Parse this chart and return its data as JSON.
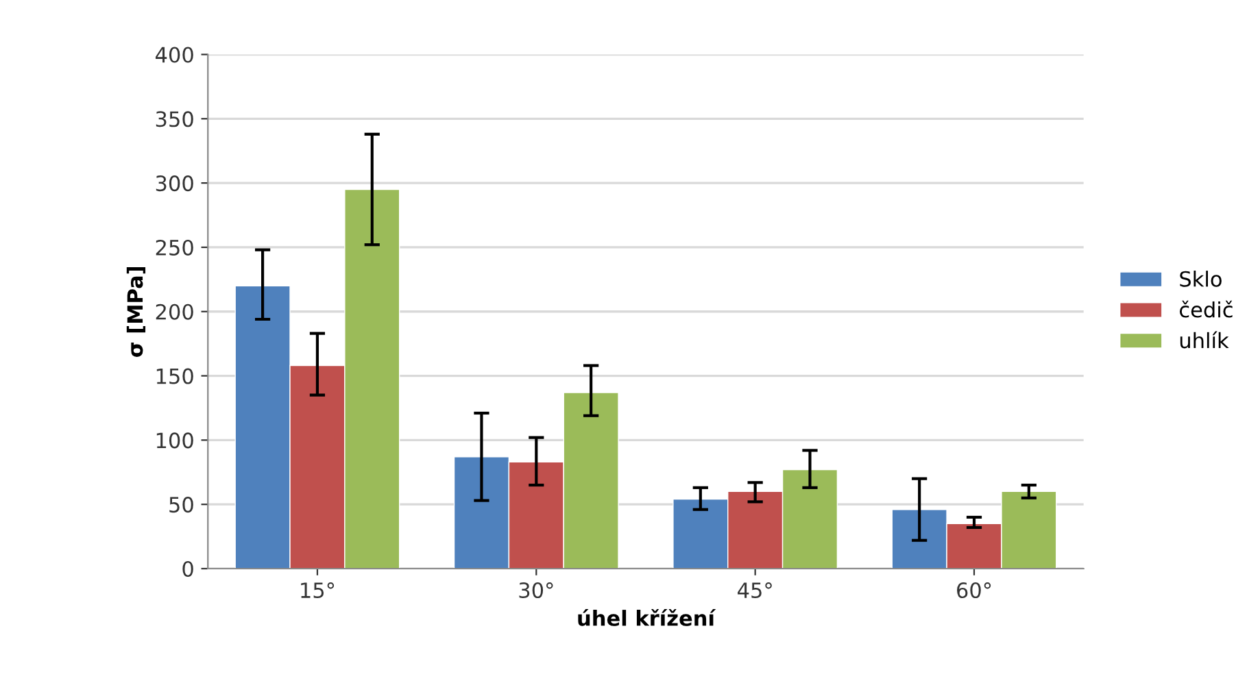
{
  "chart_data": {
    "type": "bar",
    "xlabel": "úhel křížení",
    "ylabel": "σ [MPa]",
    "categories": [
      "15°",
      "30°",
      "45°",
      "60°"
    ],
    "series": [
      {
        "name": "Sklo",
        "color": "#4f81bd",
        "values": [
          220,
          87,
          54,
          46
        ],
        "errors": [
          [
            194,
            248
          ],
          [
            53,
            121
          ],
          [
            46,
            63
          ],
          [
            22,
            70
          ]
        ]
      },
      {
        "name": "čedič",
        "color": "#c0504d",
        "values": [
          158,
          83,
          60,
          35
        ],
        "errors": [
          [
            135,
            183
          ],
          [
            65,
            102
          ],
          [
            52,
            67
          ],
          [
            32,
            40
          ]
        ]
      },
      {
        "name": "uhlík",
        "color": "#9bbb59",
        "values": [
          295,
          137,
          77,
          60
        ],
        "errors": [
          [
            252,
            338
          ],
          [
            119,
            158
          ],
          [
            63,
            92
          ],
          [
            55,
            65
          ]
        ]
      }
    ],
    "ylim": [
      0,
      400
    ],
    "yticks": [
      0,
      50,
      100,
      150,
      200,
      250,
      300,
      350,
      400
    ],
    "grid": "y",
    "legend": "right"
  }
}
